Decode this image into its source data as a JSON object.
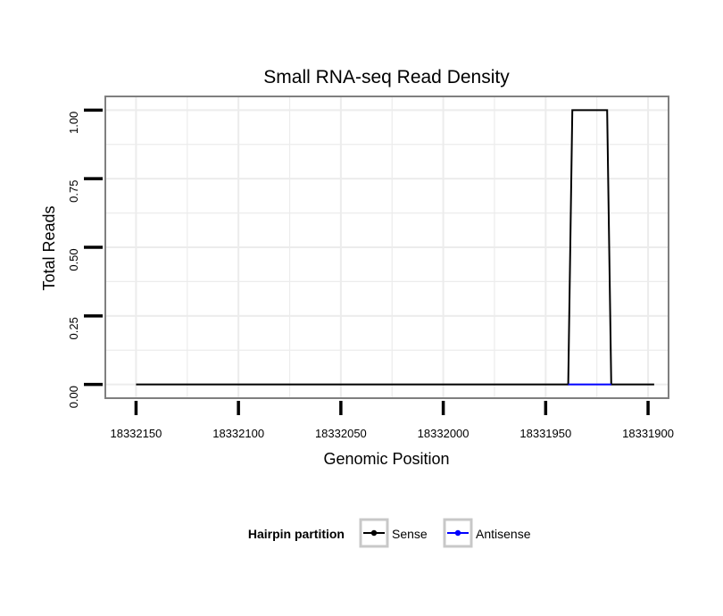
{
  "chart_data": {
    "type": "line",
    "title": "Small RNA-seq Read Density",
    "xlabel": "Genomic Position",
    "ylabel": "Total Reads",
    "x_reversed": true,
    "xlim": [
      18332165,
      18331890
    ],
    "ylim": [
      -0.05,
      1.05
    ],
    "x_ticks": [
      18332150,
      18332100,
      18332050,
      18332000,
      18331950,
      18331900
    ],
    "x_tick_labels": [
      "18332150",
      "18332100",
      "18332050",
      "18332000",
      "18331950",
      "18331900"
    ],
    "y_ticks": [
      0,
      0.25,
      0.5,
      0.75,
      1
    ],
    "y_tick_labels": [
      "0.00",
      "0.25",
      "0.50",
      "0.75",
      "1.00"
    ],
    "grid": true,
    "legend": {
      "title": "Hairpin partition",
      "position": "bottom",
      "entries": [
        "Sense",
        "Antisense"
      ]
    },
    "series": [
      {
        "name": "Sense",
        "color": "#000000",
        "x": [
          18332150,
          18331939,
          18331937,
          18331920,
          18331918,
          18331897
        ],
        "y": [
          0,
          0,
          1,
          1,
          0,
          0
        ]
      },
      {
        "name": "Antisense",
        "color": "#0000ff",
        "x": [
          18331939,
          18331918
        ],
        "y": [
          0,
          0
        ]
      }
    ]
  }
}
